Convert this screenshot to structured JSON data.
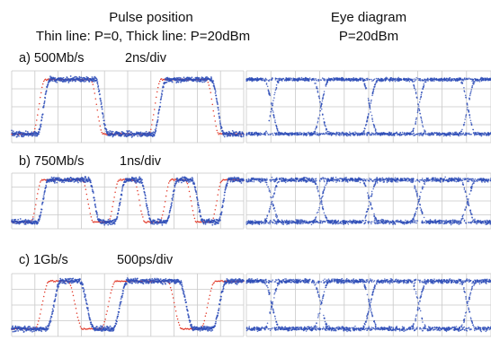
{
  "header": {
    "left_title": "Pulse position",
    "left_subtitle": "Thin line: P=0,  Thick line: P=20dBm",
    "right_title": "Eye diagram",
    "right_subtitle": "P=20dBm"
  },
  "colors": {
    "thick_trace": "#2f4fb8",
    "thin_trace": "#e23a2a",
    "grid": "#c9c9c9"
  },
  "chart_data": [
    {
      "type": "line",
      "panel": "pulse-position",
      "label": "a) 500Mb/s",
      "scale": "2ns/div",
      "pattern": [
        0,
        1,
        1,
        0,
        0,
        1,
        1,
        0
      ],
      "series": [
        {
          "values": "thin",
          "shift": 0
        },
        {
          "values": "thick",
          "shift": 0.6
        }
      ],
      "grid": true
    },
    {
      "type": "line",
      "panel": "pulse-position",
      "label": "b) 750Mb/s",
      "scale": "1ns/div",
      "pattern": [
        0,
        1,
        1,
        0,
        1,
        0,
        1,
        0,
        1
      ],
      "series": [
        {
          "values": "thin",
          "shift": 0
        },
        {
          "values": "thick",
          "shift": 0.8
        }
      ],
      "grid": true
    },
    {
      "type": "line",
      "panel": "pulse-position",
      "label": "c) 1Gb/s",
      "scale": "500ps/div",
      "pattern": [
        0,
        1,
        0,
        1,
        1,
        0,
        1
      ],
      "series": [
        {
          "values": "thin",
          "shift": 0
        },
        {
          "values": "thick",
          "shift": 0.9
        }
      ],
      "grid": true
    },
    {
      "type": "scatter",
      "panel": "eye-diagram",
      "row": "a",
      "grid": true
    },
    {
      "type": "scatter",
      "panel": "eye-diagram",
      "row": "b",
      "grid": true
    },
    {
      "type": "scatter",
      "panel": "eye-diagram",
      "row": "c",
      "grid": true
    }
  ]
}
